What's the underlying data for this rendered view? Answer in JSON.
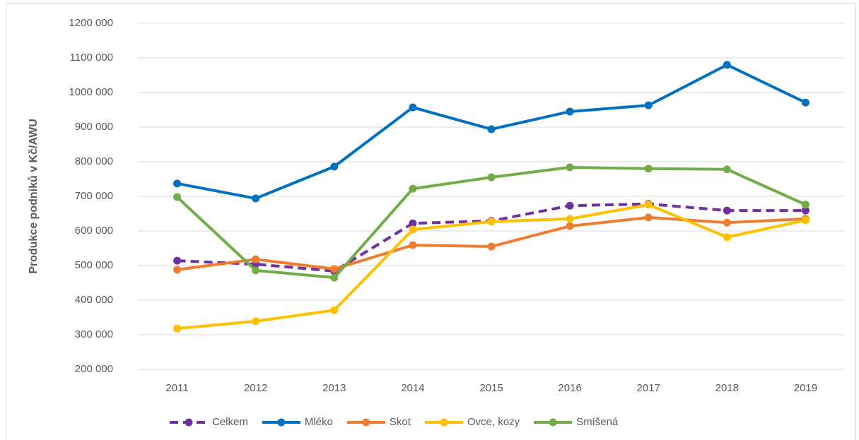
{
  "chart_data": {
    "type": "line",
    "y_label": "Produkce podniků v Kč/AWU",
    "categories": [
      "2011",
      "2012",
      "2013",
      "2014",
      "2015",
      "2016",
      "2017",
      "2018",
      "2019"
    ],
    "series": [
      {
        "name": "Celkem",
        "color": "#7030a0",
        "dashed": true,
        "values": [
          514000,
          504000,
          484000,
          622000,
          629000,
          673000,
          678000,
          659000,
          659000
        ]
      },
      {
        "name": "Mléko",
        "color": "#0070c0",
        "values": [
          737000,
          694000,
          786000,
          957000,
          894000,
          945000,
          963000,
          1080000,
          971000
        ]
      },
      {
        "name": "Skot",
        "color": "#ed7d31",
        "values": [
          488000,
          518000,
          490000,
          559000,
          555000,
          614000,
          639000,
          624000,
          635000
        ]
      },
      {
        "name": "Ovce, kozy",
        "color": "#ffc000",
        "values": [
          318000,
          339000,
          371000,
          604000,
          627000,
          635000,
          676000,
          582000,
          631000
        ]
      },
      {
        "name": "Smíšená",
        "color": "#70ad47",
        "values": [
          698000,
          486000,
          465000,
          722000,
          755000,
          784000,
          780000,
          778000,
          676000
        ]
      }
    ],
    "ylim": [
      200000,
      1200000
    ],
    "yticks": [
      {
        "value": 200000,
        "label": "200 000"
      },
      {
        "value": 300000,
        "label": "300 000"
      },
      {
        "value": 400000,
        "label": "400 000"
      },
      {
        "value": 500000,
        "label": "500 000"
      },
      {
        "value": 600000,
        "label": "600 000"
      },
      {
        "value": 700000,
        "label": "700 000"
      },
      {
        "value": 800000,
        "label": "800 000"
      },
      {
        "value": 900000,
        "label": "900 000"
      },
      {
        "value": 1000000,
        "label": "1000 000"
      },
      {
        "value": 1100000,
        "label": "1100 000"
      },
      {
        "value": 1200000,
        "label": "1200 000"
      }
    ],
    "grid": true,
    "legend": "bottom"
  }
}
